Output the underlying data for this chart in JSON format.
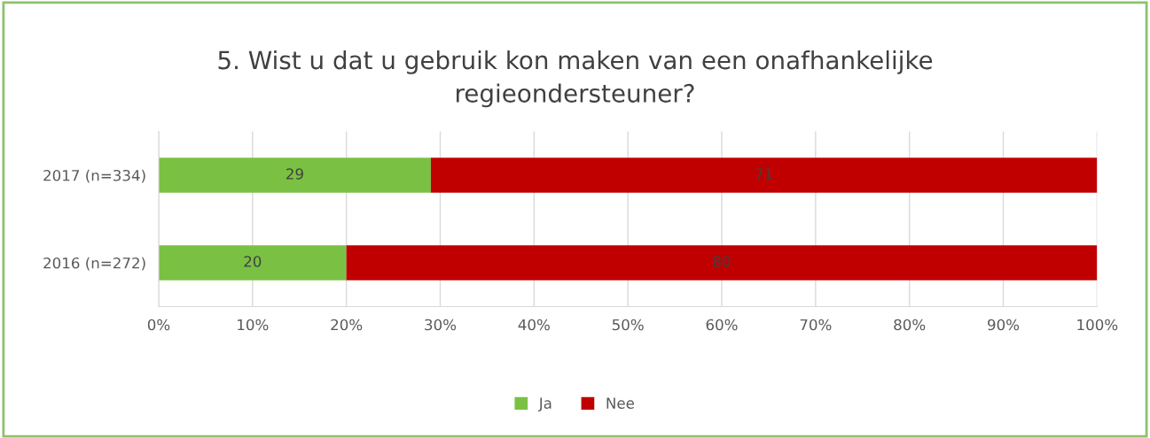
{
  "chart_data": {
    "type": "bar",
    "title": "5. Wist u dat u gebruik kon maken van een onafhankelijke\nregieondersteuner?",
    "orientation": "horizontal",
    "stacked": true,
    "categories": [
      "2017 (n=334)",
      "2016 (n=272)"
    ],
    "series": [
      {
        "name": "Ja",
        "color": "#7ac143",
        "values": [
          29,
          20
        ]
      },
      {
        "name": "Nee",
        "color": "#c00000",
        "values": [
          71,
          80
        ]
      }
    ],
    "data_labels": true,
    "xlim": [
      0,
      100
    ],
    "xticks": [
      {
        "value": 0,
        "label": "0%"
      },
      {
        "value": 10,
        "label": "10%"
      },
      {
        "value": 20,
        "label": "20%"
      },
      {
        "value": 30,
        "label": "30%"
      },
      {
        "value": 40,
        "label": "40%"
      },
      {
        "value": 50,
        "label": "50%"
      },
      {
        "value": 60,
        "label": "60%"
      },
      {
        "value": 70,
        "label": "70%"
      },
      {
        "value": 80,
        "label": "80%"
      },
      {
        "value": 90,
        "label": "90%"
      },
      {
        "value": 100,
        "label": "100%"
      }
    ],
    "grid": "x",
    "legend": "bottom"
  }
}
